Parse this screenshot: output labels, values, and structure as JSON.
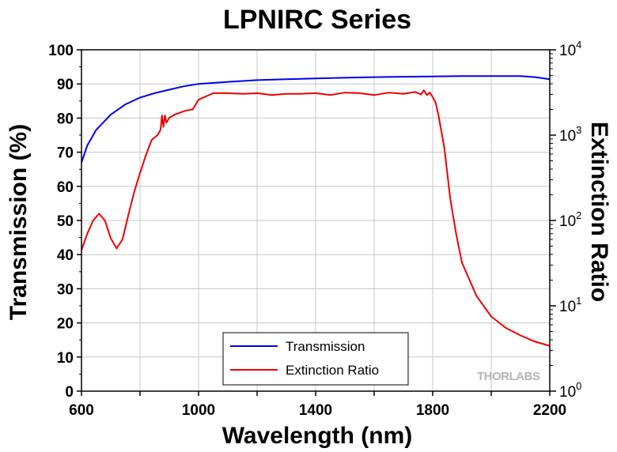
{
  "chart_data": {
    "type": "line",
    "title": "LPNIRC Series",
    "xlabel": "Wavelength (nm)",
    "ylabel_left": "Transmission (%)",
    "ylabel_right": "Extinction Ratio",
    "xlim": [
      600,
      2200
    ],
    "ylim_left": [
      0,
      100
    ],
    "ylim_right": [
      1,
      10000
    ],
    "right_axis_scale": "log",
    "x_ticks": [
      "600",
      "1000",
      "1400",
      "1800",
      "2200"
    ],
    "y_ticks_left": [
      "0",
      "10",
      "20",
      "30",
      "40",
      "50",
      "60",
      "70",
      "80",
      "90",
      "100"
    ],
    "y_ticks_right": [
      {
        "base": "10",
        "exp": "0"
      },
      {
        "base": "10",
        "exp": "1"
      },
      {
        "base": "10",
        "exp": "2"
      },
      {
        "base": "10",
        "exp": "3"
      },
      {
        "base": "10",
        "exp": "4"
      }
    ],
    "grid": true,
    "legend_position": "bottom-center",
    "series": [
      {
        "name": "Transmission",
        "axis": "left",
        "color": "#0000ee",
        "x": [
          600,
          620,
          650,
          700,
          750,
          800,
          850,
          900,
          950,
          1000,
          1100,
          1200,
          1300,
          1400,
          1500,
          1600,
          1700,
          1800,
          1900,
          2000,
          2100,
          2150,
          2200
        ],
        "y": [
          67,
          72,
          76.5,
          81,
          84,
          86,
          87.3,
          88.3,
          89.3,
          90,
          90.6,
          91.1,
          91.4,
          91.6,
          91.8,
          92,
          92.1,
          92.2,
          92.3,
          92.3,
          92.3,
          92,
          91.4
        ]
      },
      {
        "name": "Extinction Ratio",
        "axis": "right",
        "color": "#ee0000",
        "x": [
          600,
          620,
          640,
          660,
          680,
          700,
          720,
          740,
          760,
          780,
          800,
          820,
          840,
          860,
          870,
          875,
          880,
          885,
          890,
          900,
          920,
          940,
          960,
          980,
          1000,
          1050,
          1100,
          1150,
          1200,
          1250,
          1300,
          1350,
          1400,
          1450,
          1500,
          1550,
          1600,
          1650,
          1700,
          1740,
          1760,
          1770,
          1780,
          1790,
          1800,
          1810,
          1820,
          1840,
          1860,
          1880,
          1900,
          1950,
          2000,
          2050,
          2100,
          2150,
          2200
        ],
        "y": [
          45,
          70,
          100,
          120,
          100,
          62,
          47,
          60,
          115,
          215,
          360,
          580,
          880,
          1000,
          1150,
          1700,
          1250,
          1700,
          1400,
          1600,
          1750,
          1850,
          1950,
          2000,
          2600,
          3100,
          3100,
          3050,
          3100,
          2950,
          3050,
          3050,
          3100,
          2950,
          3150,
          3100,
          2950,
          3150,
          3050,
          3200,
          3000,
          3350,
          2950,
          3150,
          2800,
          2400,
          1700,
          700,
          180,
          70,
          32,
          13,
          7.5,
          5.5,
          4.5,
          3.8,
          3.4
        ]
      }
    ],
    "watermark": "THORLABS"
  }
}
